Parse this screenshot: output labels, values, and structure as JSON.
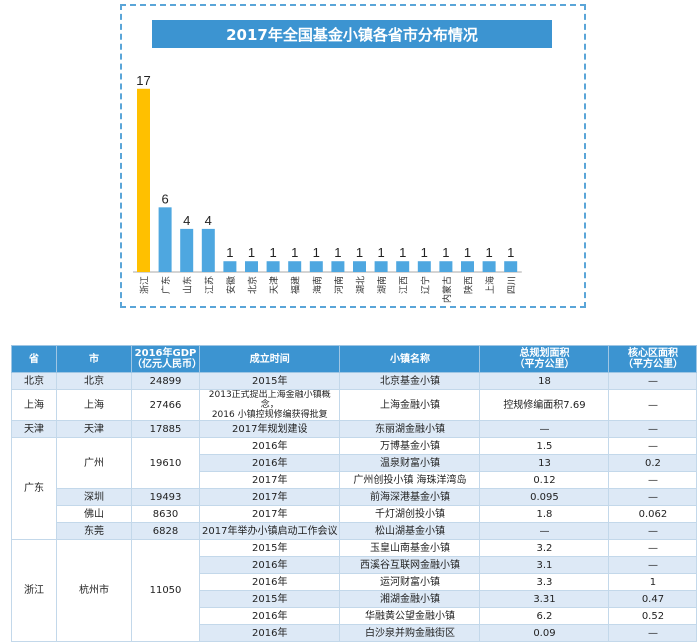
{
  "chart_data": {
    "type": "bar",
    "title": "2017年全国基金小镇各省市分布情况",
    "categories": [
      "浙江",
      "广东",
      "山东",
      "江苏",
      "安徽",
      "北京",
      "天津",
      "福建",
      "海南",
      "河南",
      "湖北",
      "湖南",
      "江西",
      "辽宁",
      "内蒙古",
      "陕西",
      "上海",
      "四川"
    ],
    "values": [
      17,
      6,
      4,
      4,
      1,
      1,
      1,
      1,
      1,
      1,
      1,
      1,
      1,
      1,
      1,
      1,
      1,
      1
    ],
    "colors": {
      "highlight": "#ffc000",
      "default": "#4ea7e0",
      "axis": "#aaaaaa"
    },
    "ylim": [
      0,
      18
    ],
    "grid": false,
    "legend": "none"
  },
  "table": {
    "headers": [
      "省",
      "市",
      "2016年GDP\n（亿元人民币）",
      "成立时间",
      "小镇名称",
      "总规划面积\n（平方公里）",
      "核心区面积\n（平方公里）"
    ],
    "rows": [
      [
        "北京",
        "北京",
        "24899",
        "2015年",
        "北京基金小镇",
        "18",
        "—"
      ],
      [
        "上海",
        "上海",
        "27466",
        "2013正式提出上海金融小镇概念，\n2016 小镇控规修编获得批复",
        "上海金融小镇",
        "控规修编面积7.69",
        "—"
      ],
      [
        "天津",
        "天津",
        "17885",
        "2017年规划建设",
        "东丽湖金融小镇",
        "—",
        "—"
      ],
      [
        "广东",
        "广州",
        "19610",
        "2016年",
        "万博基金小镇",
        "1.5",
        "—"
      ],
      [
        "",
        "",
        "",
        "2016年",
        "温泉财富小镇",
        "13",
        "0.2"
      ],
      [
        "",
        "",
        "",
        "2017年",
        "广州创投小镇 海珠洋湾岛",
        "0.12",
        "—"
      ],
      [
        "",
        "深圳",
        "19493",
        "2017年",
        "前海深港基金小镇",
        "0.095",
        "—"
      ],
      [
        "",
        "佛山",
        "8630",
        "2017年",
        "千灯湖创投小镇",
        "1.8",
        "0.062"
      ],
      [
        "",
        "东莞",
        "6828",
        "2017年举办小镇启动工作会议",
        "松山湖基金小镇",
        "—",
        "—"
      ],
      [
        "浙江",
        "杭州市",
        "11050",
        "2015年",
        "玉皇山南基金小镇",
        "3.2",
        "—"
      ],
      [
        "",
        "",
        "",
        "2016年",
        "西溪谷互联网金融小镇",
        "3.1",
        "—"
      ],
      [
        "",
        "",
        "",
        "2016年",
        "运河财富小镇",
        "3.3",
        "1"
      ],
      [
        "",
        "",
        "",
        "2015年",
        "湘湖金融小镇",
        "3.31",
        "0.47"
      ],
      [
        "",
        "",
        "",
        "2016年",
        "华融黄公望金融小镇",
        "6.2",
        "0.52"
      ],
      [
        "",
        "",
        "",
        "2016年",
        "白沙泉并购金融街区",
        "0.09",
        "—"
      ]
    ]
  }
}
